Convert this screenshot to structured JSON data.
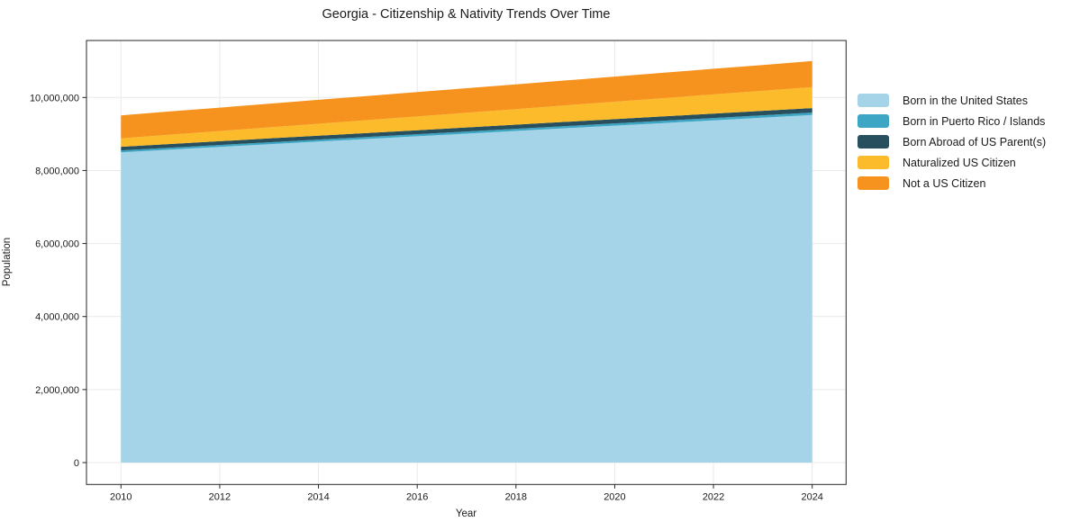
{
  "chart_data": {
    "type": "area",
    "stacked": true,
    "title": "Georgia - Citizenship & Nativity Trends Over Time",
    "xlabel": "Year",
    "ylabel": "Population",
    "grid": true,
    "legend_position": "right-outside",
    "xlim": [
      2009.3,
      2024.7
    ],
    "ylim": [
      0,
      11560000
    ],
    "x": [
      2010,
      2011,
      2012,
      2013,
      2014,
      2015,
      2016,
      2017,
      2018,
      2019,
      2020,
      2021,
      2022,
      2023,
      2024
    ],
    "x_ticks": {
      "values": [
        2010,
        2012,
        2014,
        2016,
        2018,
        2020,
        2022,
        2024
      ],
      "labels": [
        "2010",
        "2012",
        "2014",
        "2016",
        "2018",
        "2020",
        "2022",
        "2024"
      ]
    },
    "y_ticks": {
      "values": [
        0,
        2000000,
        4000000,
        6000000,
        8000000,
        10000000
      ],
      "labels": [
        "0",
        "2,000,000",
        "4,000,000",
        "6,000,000",
        "8,000,000",
        "10,000,000"
      ]
    },
    "series": [
      {
        "name": "Born in the United States",
        "color": "#a5d3e8",
        "values": [
          8500000,
          8573000,
          8646000,
          8719000,
          8791000,
          8864000,
          8937000,
          9010000,
          9083000,
          9156000,
          9229000,
          9301000,
          9374000,
          9447000,
          9520000
        ]
      },
      {
        "name": "Born in Puerto Rico / Islands",
        "color": "#3da6c4",
        "values": [
          50000,
          51000,
          52000,
          54000,
          55000,
          56000,
          57000,
          59000,
          60000,
          61000,
          62000,
          63000,
          65000,
          66000,
          67000
        ]
      },
      {
        "name": "Born Abroad of US Parent(s)",
        "color": "#284f5e",
        "values": [
          100000,
          102000,
          103000,
          105000,
          107000,
          108000,
          110000,
          111000,
          113000,
          115000,
          116000,
          118000,
          120000,
          121000,
          123000
        ]
      },
      {
        "name": "Naturalized US Citizen",
        "color": "#fbbb2a",
        "values": [
          230000,
          255000,
          279000,
          304000,
          328000,
          353000,
          377000,
          402000,
          427000,
          451000,
          476000,
          500000,
          525000,
          549000,
          574000
        ]
      },
      {
        "name": "Not a US Citizen",
        "color": "#f6921e",
        "values": [
          630000,
          636000,
          642000,
          648000,
          654000,
          660000,
          666000,
          672000,
          678000,
          684000,
          690000,
          696000,
          702000,
          708000,
          714000
        ]
      }
    ]
  },
  "style_colors": {
    "grid": "#e9e9e9",
    "spine": "#262626",
    "tick": "#262626",
    "text": "#1a1a1a"
  }
}
